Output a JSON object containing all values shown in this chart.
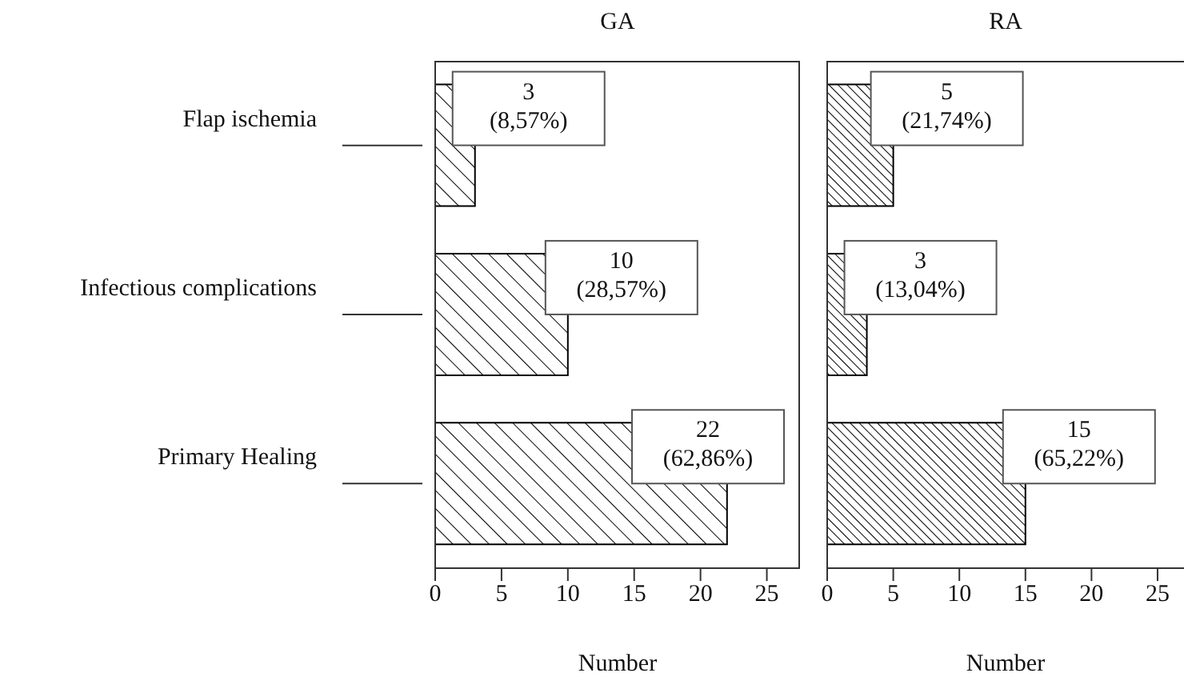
{
  "chart_data": [
    {
      "type": "bar",
      "orientation": "horizontal",
      "title": "GA",
      "xlabel": "Number",
      "categories": [
        "Flap ischemia",
        "Infectious complications",
        "Primary Healing"
      ],
      "values": [
        3,
        10,
        22
      ],
      "color": "#000000",
      "xlim": [
        0,
        27.5
      ],
      "xticks": [
        0,
        5,
        10,
        15,
        20,
        25
      ],
      "value_labels": [
        "3\n(8,57%)",
        "10\n(28,57%)",
        "22\n(62,86%)"
      ]
    },
    {
      "type": "bar",
      "orientation": "horizontal",
      "title": "RA",
      "xlabel": "Number",
      "categories": [
        null,
        null,
        null
      ],
      "values": [
        5,
        3,
        15
      ],
      "color": "#000000",
      "xlim": [
        0,
        27
      ],
      "xticks": [
        0,
        5,
        10,
        15,
        20,
        25
      ],
      "tick_labels": "x",
      "value_labels": [
        "5\n(21,74%)",
        "3\n(13,04%)",
        "15\n(65,22%)"
      ]
    }
  ]
}
